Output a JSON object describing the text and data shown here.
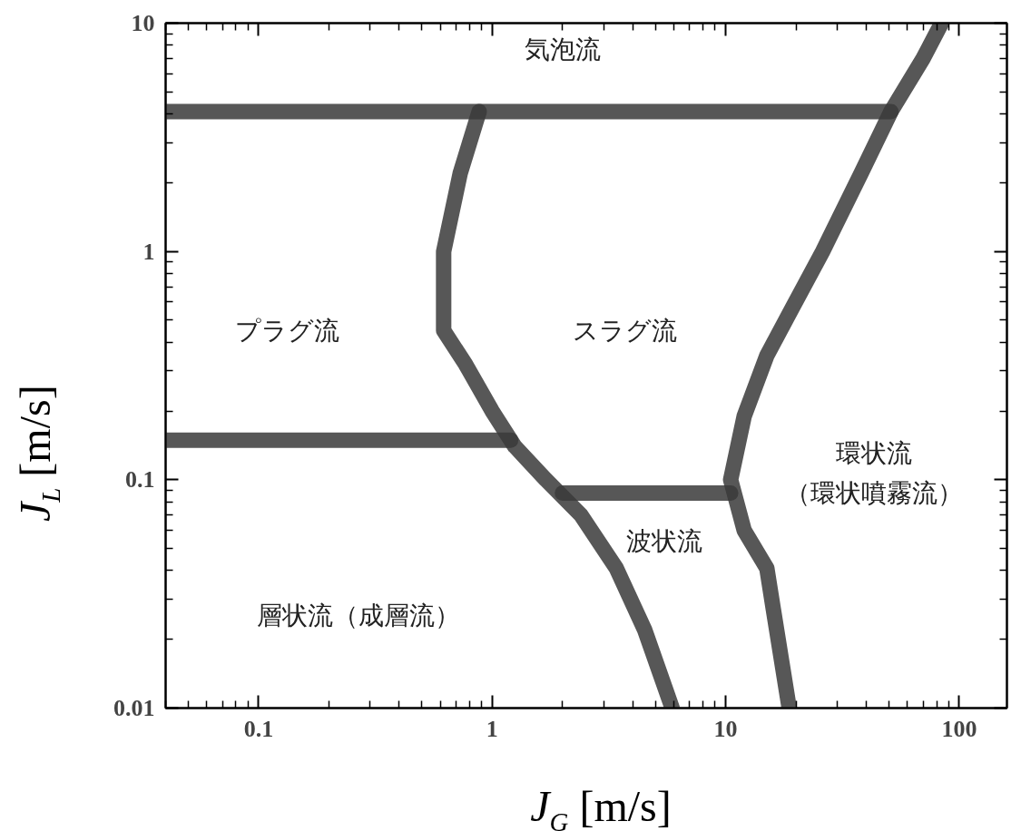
{
  "chart_data": {
    "type": "line",
    "xlabel": "J$_{G}$ [m/s]",
    "ylabel": "J$_{L}$ [m/s]",
    "log": "xy",
    "xlim": [
      0.04,
      160
    ],
    "ylim": [
      0.01,
      10
    ],
    "xticks": [
      0.1,
      1,
      10,
      100
    ],
    "yticks": [
      0.01,
      0.1,
      1,
      10
    ],
    "grid": false,
    "marker": "none",
    "line_style": "solid",
    "series": [
      {
        "color": "#3a3a3a",
        "x": [
          0.04,
          20,
          51
        ],
        "values": [
          4.1,
          4.1,
          4.1
        ]
      },
      {
        "color": "#3a3a3a",
        "x": [
          84,
          70,
          51,
          38,
          26,
          19,
          15,
          12,
          10.5,
          12,
          15,
          16,
          18.7
        ],
        "values": [
          10,
          7,
          4.1,
          2.2,
          1,
          0.55,
          0.35,
          0.19,
          0.1,
          0.06,
          0.041,
          0.027,
          0.01
        ]
      },
      {
        "color": "#3a3a3a",
        "x": [
          0.88,
          0.73,
          0.62,
          0.62,
          0.77,
          1.0,
          1.25,
          1.7,
          2.4,
          3.4,
          4.5,
          5.9
        ],
        "values": [
          4.1,
          2.2,
          1,
          0.45,
          0.32,
          0.2,
          0.14,
          0.1,
          0.07,
          0.041,
          0.022,
          0.01
        ]
      },
      {
        "color": "#3a3a3a",
        "x": [
          0.04,
          0.5,
          1.2
        ],
        "values": [
          0.149,
          0.149,
          0.149
        ]
      },
      {
        "color": "#3a3a3a",
        "x": [
          2.0,
          5,
          10.5
        ],
        "values": [
          0.0875,
          0.0875,
          0.0875
        ]
      }
    ],
    "annotations": [
      "気泡流",
      "プラグ流",
      "スラグ流",
      "環状流",
      "（環状噴霧流）",
      "波状流",
      "層状流（成層流）"
    ]
  }
}
